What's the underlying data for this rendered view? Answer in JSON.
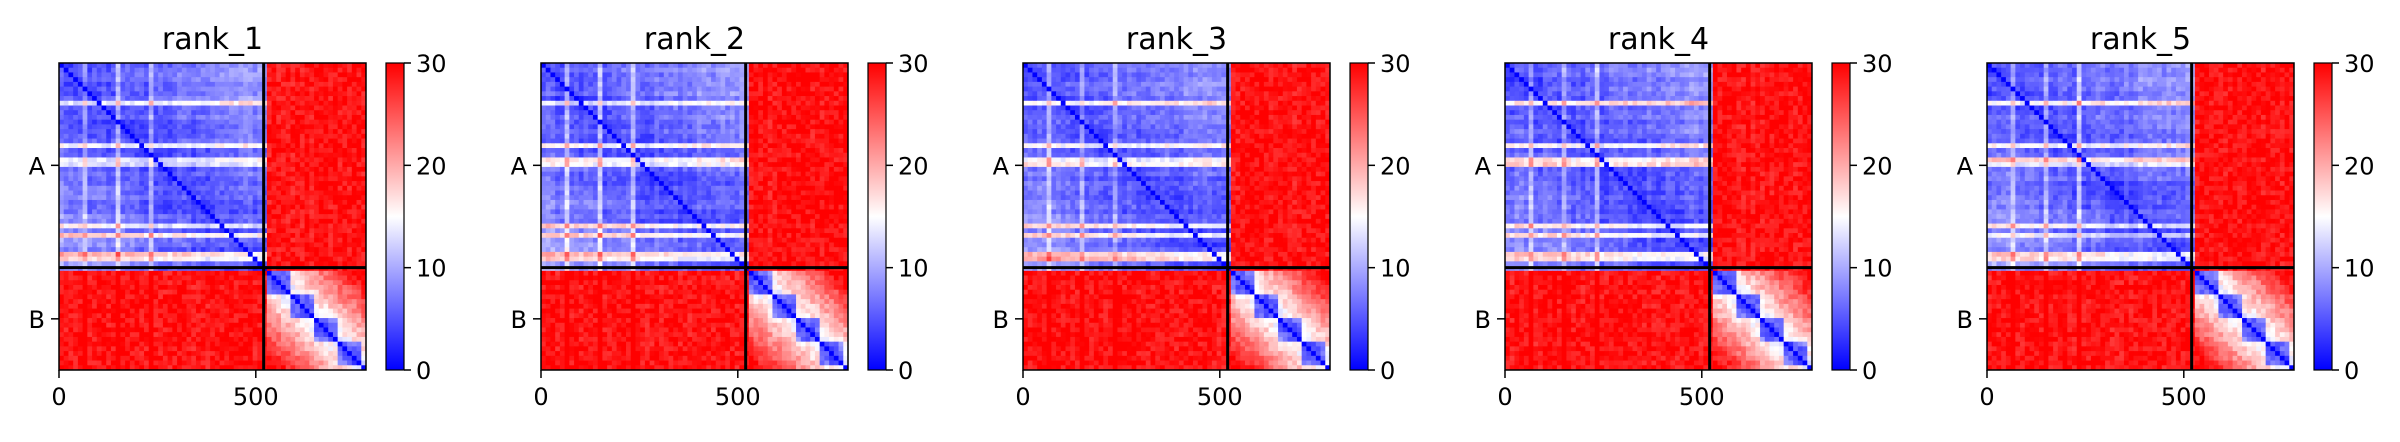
{
  "chart_data": {
    "type": "heatmap",
    "description_series": "Predicted aligned error (PAE) matrices for five ranked models",
    "panels": [
      {
        "title": "rank_1"
      },
      {
        "title": "rank_2"
      },
      {
        "title": "rank_3"
      },
      {
        "title": "rank_4"
      },
      {
        "title": "rank_5"
      }
    ],
    "chains": [
      {
        "label": "A",
        "start": 0,
        "end": 520
      },
      {
        "label": "B",
        "start": 520,
        "end": 780
      }
    ],
    "x_ticks": [
      0,
      500
    ],
    "x_tick_labels": [
      "0",
      "500"
    ],
    "xlim": [
      0,
      780
    ],
    "colorbar": {
      "min": 0,
      "max": 30,
      "ticks": [
        0,
        10,
        20,
        30
      ],
      "tick_labels": [
        "0",
        "10",
        "20",
        "30"
      ],
      "colormap": "bwr",
      "colors": {
        "low": "#0000ff",
        "mid": "#ffffff",
        "high": "#ff0000"
      }
    },
    "grid": false
  }
}
